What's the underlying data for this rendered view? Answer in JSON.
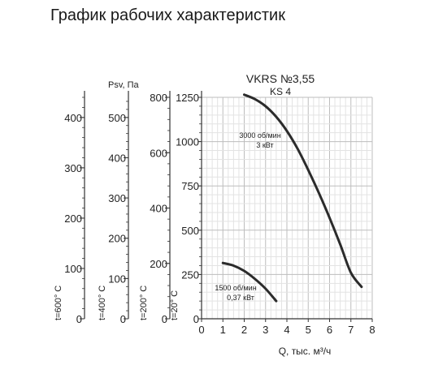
{
  "page_title": "График рабочих характеристик",
  "chart_data": {
    "type": "line",
    "model_line1": "VKRS №3,55",
    "model_line2": "KS 4",
    "pressure_axis_label": "Psv, Па",
    "xlabel": "Q, тыс. м³/ч",
    "xlim": [
      0,
      8
    ],
    "x_ticks": [
      "0",
      "1",
      "2",
      "3",
      "4",
      "5",
      "6",
      "7",
      "8"
    ],
    "ylim": [
      0,
      1250
    ],
    "y_ticks": [
      "0",
      "250",
      "500",
      "750",
      "1000",
      "1250"
    ],
    "grid": true,
    "temperature_axes": [
      {
        "label": "t=600° C",
        "max": 440,
        "ticks": [
          "0",
          "100",
          "200",
          "300",
          "400"
        ]
      },
      {
        "label": "t=400° C",
        "max": 550,
        "ticks": [
          "0",
          "100",
          "200",
          "300",
          "400",
          "500"
        ]
      },
      {
        "label": "t=200° C",
        "max": 800,
        "ticks": [
          "0",
          "200",
          "400",
          "600",
          "800"
        ]
      },
      {
        "label": "t=20° C",
        "max": 1250,
        "ticks": [
          "0",
          "250",
          "500",
          "750",
          "1000",
          "1250"
        ]
      }
    ],
    "series": [
      {
        "name_line1": "3000 об/мин",
        "name_line2": "3 кВт",
        "x": [
          2.0,
          2.5,
          3.0,
          3.5,
          4.0,
          4.5,
          5.0,
          5.5,
          6.0,
          6.5,
          7.0,
          7.5
        ],
        "y": [
          1265,
          1240,
          1200,
          1140,
          1060,
          960,
          840,
          710,
          570,
          420,
          260,
          180
        ]
      },
      {
        "name_line1": "1500 об/мин",
        "name_line2": "0,37 кВт",
        "x": [
          1.0,
          1.5,
          2.0,
          2.5,
          3.0,
          3.5
        ],
        "y": [
          315,
          300,
          270,
          225,
          170,
          100
        ]
      }
    ]
  }
}
